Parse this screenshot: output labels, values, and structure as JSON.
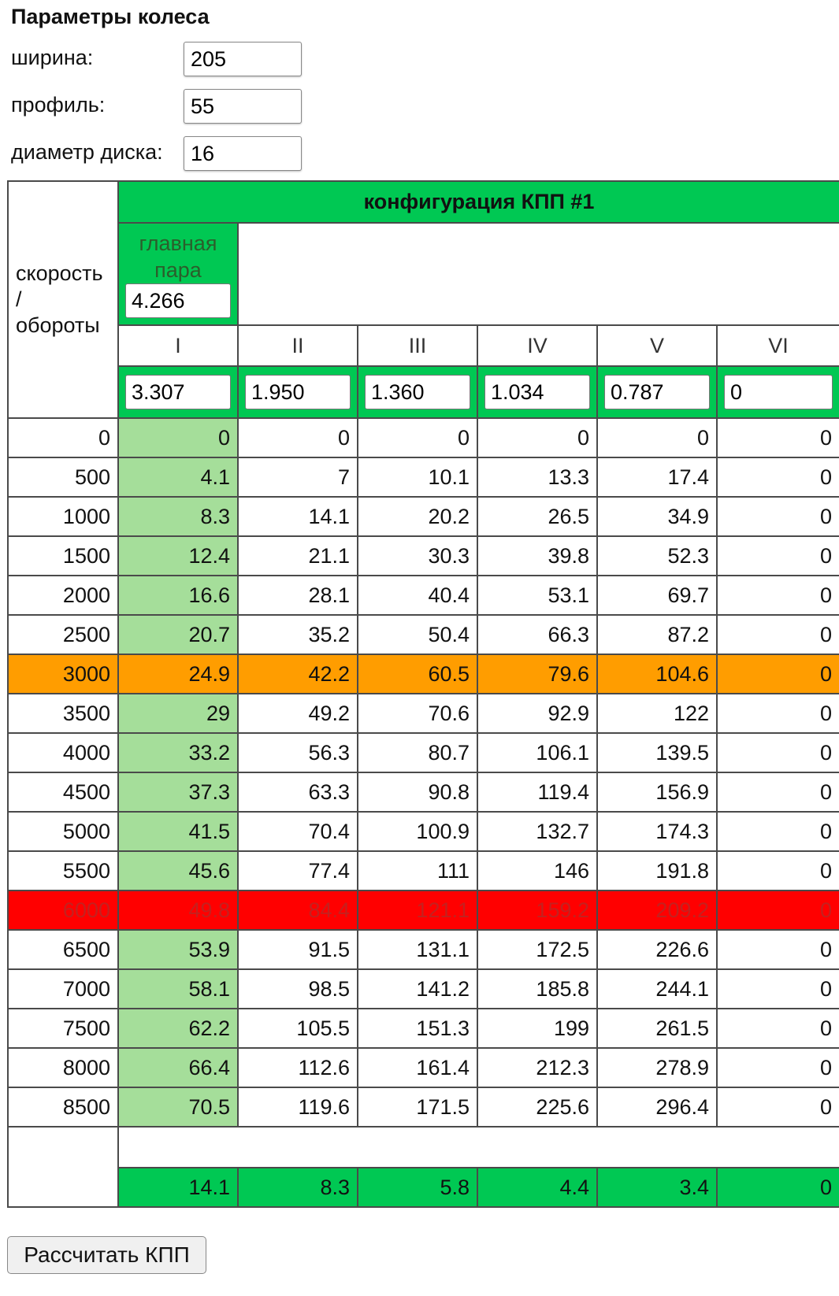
{
  "wheel": {
    "title": "Параметры колеса",
    "width_label": "ширина:",
    "width_value": "205",
    "profile_label": "профиль:",
    "profile_value": "55",
    "diameter_label": "диаметр диска:",
    "diameter_value": "16"
  },
  "table": {
    "corner_label_1": "скорость",
    "corner_label_2": "/",
    "corner_label_3": "обороты",
    "config_title": "конфигурация КПП #1",
    "main_pair_label_1": "главная",
    "main_pair_label_2": "пара",
    "main_pair_value": "4.266",
    "gears": [
      "I",
      "II",
      "III",
      "IV",
      "V",
      "VI"
    ],
    "ratios": [
      "3.307",
      "1.950",
      "1.360",
      "1.034",
      "0.787",
      "0"
    ],
    "rows": [
      {
        "rpm": "0",
        "v": [
          "0",
          "0",
          "0",
          "0",
          "0",
          "0"
        ]
      },
      {
        "rpm": "500",
        "v": [
          "4.1",
          "7",
          "10.1",
          "13.3",
          "17.4",
          "0"
        ]
      },
      {
        "rpm": "1000",
        "v": [
          "8.3",
          "14.1",
          "20.2",
          "26.5",
          "34.9",
          "0"
        ]
      },
      {
        "rpm": "1500",
        "v": [
          "12.4",
          "21.1",
          "30.3",
          "39.8",
          "52.3",
          "0"
        ]
      },
      {
        "rpm": "2000",
        "v": [
          "16.6",
          "28.1",
          "40.4",
          "53.1",
          "69.7",
          "0"
        ]
      },
      {
        "rpm": "2500",
        "v": [
          "20.7",
          "35.2",
          "50.4",
          "66.3",
          "87.2",
          "0"
        ]
      },
      {
        "rpm": "3000",
        "v": [
          "24.9",
          "42.2",
          "60.5",
          "79.6",
          "104.6",
          "0"
        ],
        "highlight": "orange"
      },
      {
        "rpm": "3500",
        "v": [
          "29",
          "49.2",
          "70.6",
          "92.9",
          "122",
          "0"
        ]
      },
      {
        "rpm": "4000",
        "v": [
          "33.2",
          "56.3",
          "80.7",
          "106.1",
          "139.5",
          "0"
        ]
      },
      {
        "rpm": "4500",
        "v": [
          "37.3",
          "63.3",
          "90.8",
          "119.4",
          "156.9",
          "0"
        ]
      },
      {
        "rpm": "5000",
        "v": [
          "41.5",
          "70.4",
          "100.9",
          "132.7",
          "174.3",
          "0"
        ]
      },
      {
        "rpm": "5500",
        "v": [
          "45.6",
          "77.4",
          "111",
          "146",
          "191.8",
          "0"
        ]
      },
      {
        "rpm": "6000",
        "v": [
          "49.8",
          "84.4",
          "121.1",
          "159.2",
          "209.2",
          "0"
        ],
        "highlight": "red"
      },
      {
        "rpm": "6500",
        "v": [
          "53.9",
          "91.5",
          "131.1",
          "172.5",
          "226.6",
          "0"
        ]
      },
      {
        "rpm": "7000",
        "v": [
          "58.1",
          "98.5",
          "141.2",
          "185.8",
          "244.1",
          "0"
        ]
      },
      {
        "rpm": "7500",
        "v": [
          "62.2",
          "105.5",
          "151.3",
          "199",
          "261.5",
          "0"
        ]
      },
      {
        "rpm": "8000",
        "v": [
          "66.4",
          "112.6",
          "161.4",
          "212.3",
          "278.9",
          "0"
        ]
      },
      {
        "rpm": "8500",
        "v": [
          "70.5",
          "119.6",
          "171.5",
          "225.6",
          "296.4",
          "0"
        ]
      }
    ],
    "totals": [
      "14.1",
      "8.3",
      "5.8",
      "4.4",
      "3.4",
      "0"
    ]
  },
  "colors": {
    "header_green": "#00c853",
    "first_gear_green": "#a5de9a",
    "orange_row": "#ff9d00",
    "red_row": "#ff0000"
  },
  "button": {
    "label": "Рассчитать КПП"
  }
}
